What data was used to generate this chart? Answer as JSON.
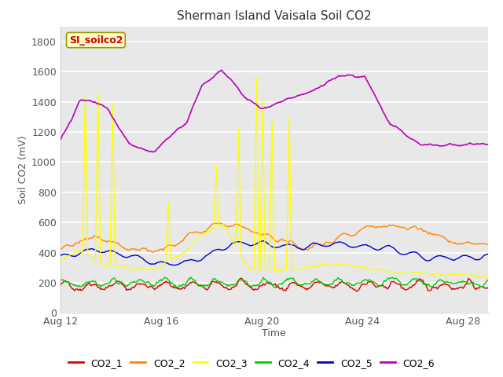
{
  "title": "Sherman Island Vaisala Soil CO2",
  "xlabel": "Time",
  "ylabel": "Soil CO2 (mV)",
  "ylim": [
    0,
    1900
  ],
  "yticks": [
    0,
    200,
    400,
    600,
    800,
    1000,
    1200,
    1400,
    1600,
    1800
  ],
  "fig_bg": "#ffffff",
  "plot_bg": "#e8e8e8",
  "grid_color": "white",
  "series_colors": {
    "CO2_1": "#dd0000",
    "CO2_2": "#ff8800",
    "CO2_3": "#ffff00",
    "CO2_4": "#00cc00",
    "CO2_5": "#0000cc",
    "CO2_6": "#bb00bb"
  },
  "legend_label": "SI_soilco2",
  "legend_bg": "#ffffcc",
  "legend_border": "#999900",
  "legend_text_color": "#cc0000",
  "x_ticks": [
    0,
    4,
    8,
    12,
    16
  ],
  "x_tick_labels": [
    "Aug 12",
    "Aug 16",
    "Aug 20",
    "Aug 24",
    "Aug 28"
  ]
}
